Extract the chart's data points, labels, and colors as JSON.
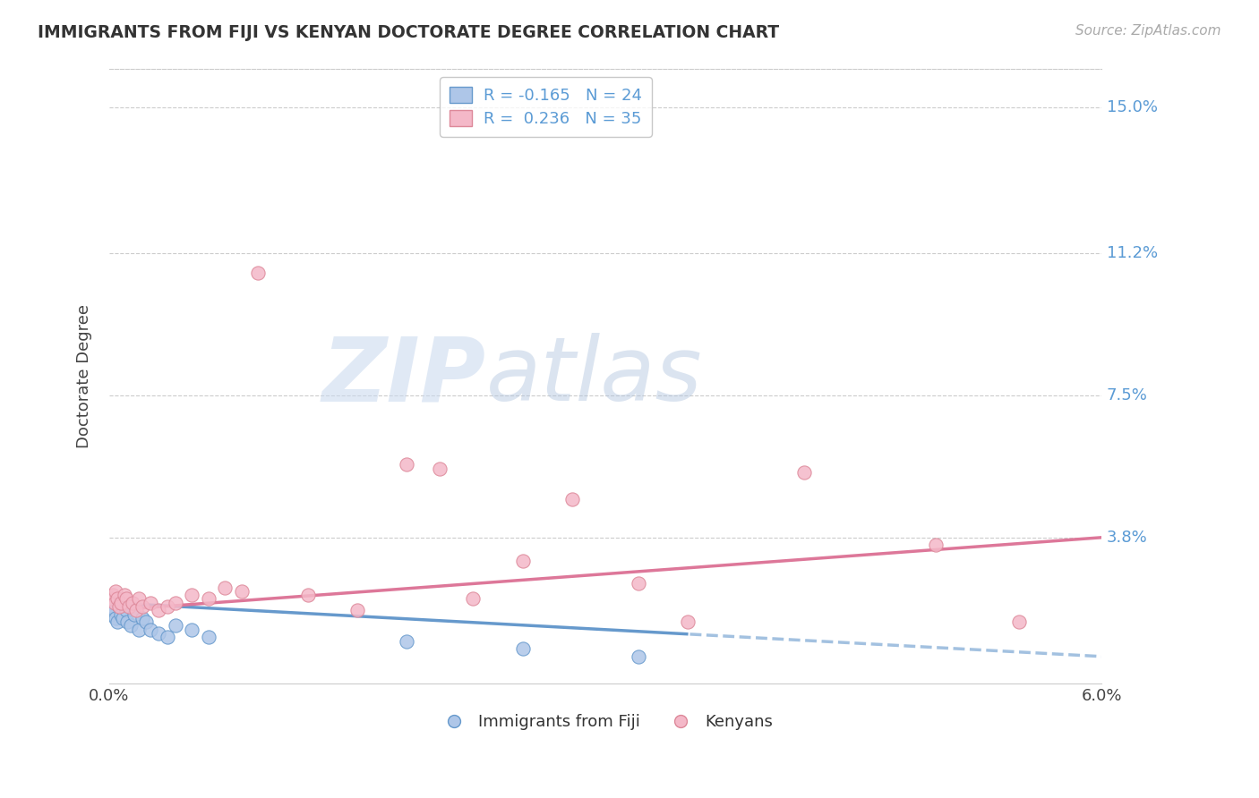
{
  "title": "IMMIGRANTS FROM FIJI VS KENYAN DOCTORATE DEGREE CORRELATION CHART",
  "source_text": "Source: ZipAtlas.com",
  "ylabel": "Doctorate Degree",
  "xlim": [
    0.0,
    0.06
  ],
  "ylim": [
    0.0,
    0.16
  ],
  "ytick_labels": [
    "3.8%",
    "7.5%",
    "11.2%",
    "15.0%"
  ],
  "ytick_values": [
    0.038,
    0.075,
    0.112,
    0.15
  ],
  "fiji_color": "#aec6e8",
  "fiji_edge_color": "#6699cc",
  "kenyan_color": "#f4b8c8",
  "kenyan_edge_color": "#dd8899",
  "fiji_R": -0.165,
  "fiji_N": 24,
  "kenyan_R": 0.236,
  "kenyan_N": 35,
  "fiji_line_color": "#6699cc",
  "kenyan_line_color": "#dd7799",
  "watermark_zip": "ZIP",
  "watermark_atlas": "atlas",
  "fiji_scatter_x": [
    0.0001,
    0.0002,
    0.0003,
    0.0004,
    0.0005,
    0.0006,
    0.0007,
    0.0008,
    0.001,
    0.0011,
    0.0013,
    0.0015,
    0.0018,
    0.002,
    0.0022,
    0.0025,
    0.003,
    0.0035,
    0.004,
    0.005,
    0.006,
    0.018,
    0.025,
    0.032
  ],
  "fiji_scatter_y": [
    0.018,
    0.02,
    0.019,
    0.017,
    0.016,
    0.02,
    0.018,
    0.017,
    0.019,
    0.016,
    0.015,
    0.018,
    0.014,
    0.017,
    0.016,
    0.014,
    0.013,
    0.012,
    0.015,
    0.014,
    0.012,
    0.011,
    0.009,
    0.007
  ],
  "kenyan_scatter_x": [
    0.0001,
    0.0002,
    0.0003,
    0.0004,
    0.0005,
    0.0006,
    0.0007,
    0.0009,
    0.001,
    0.0012,
    0.0014,
    0.0016,
    0.0018,
    0.002,
    0.0025,
    0.003,
    0.0035,
    0.004,
    0.005,
    0.006,
    0.007,
    0.008,
    0.009,
    0.012,
    0.015,
    0.018,
    0.02,
    0.022,
    0.025,
    0.028,
    0.032,
    0.035,
    0.042,
    0.05,
    0.055
  ],
  "kenyan_scatter_y": [
    0.022,
    0.023,
    0.021,
    0.024,
    0.022,
    0.02,
    0.021,
    0.023,
    0.022,
    0.02,
    0.021,
    0.019,
    0.022,
    0.02,
    0.021,
    0.019,
    0.02,
    0.021,
    0.023,
    0.022,
    0.025,
    0.024,
    0.107,
    0.023,
    0.019,
    0.057,
    0.056,
    0.022,
    0.032,
    0.048,
    0.026,
    0.016,
    0.055,
    0.036,
    0.016
  ]
}
